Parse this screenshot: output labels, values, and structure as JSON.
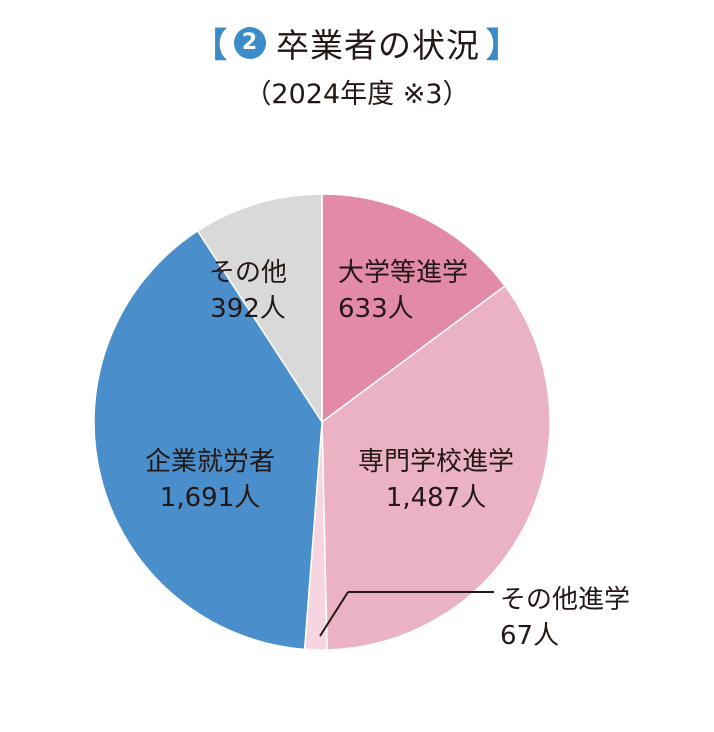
{
  "header": {
    "bracket_open": "【",
    "badge_number": "2",
    "title": "卒業者の状況",
    "bracket_close": "】",
    "subtitle": "（2024年度 ※3）"
  },
  "chart_data": {
    "type": "pie",
    "slices": [
      {
        "label": "大学等進学",
        "value": 633,
        "value_label": "633人",
        "color": "#e28aa8"
      },
      {
        "label": "専門学校進学",
        "value": 1487,
        "value_label": "1,487人",
        "color": "#eab2c3"
      },
      {
        "label": "その他進学",
        "value": 67,
        "value_label": "67人",
        "color": "#f6d5e0"
      },
      {
        "label": "企業就労者",
        "value": 1691,
        "value_label": "1,691人",
        "color": "#4a8fcb"
      },
      {
        "label": "その他",
        "value": 392,
        "value_label": "392人",
        "color": "#d9d9d9"
      }
    ]
  }
}
